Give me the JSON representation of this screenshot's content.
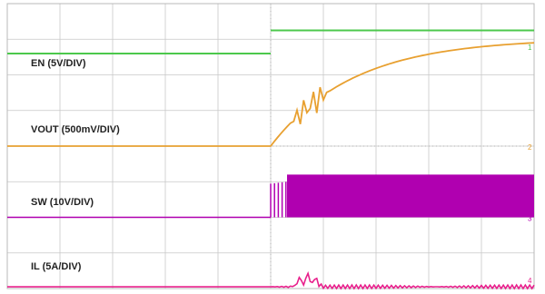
{
  "chart_data": {
    "type": "line",
    "title": "",
    "xlabel": "",
    "ylabel": "",
    "grid": true,
    "grid_divisions": {
      "x": 10,
      "y": 8
    },
    "trigger_x_division": 5,
    "series": [
      {
        "name": "EN (5V/DIV)",
        "color": "#4cc84c",
        "level_divisions_before": 6.6,
        "level_divisions_after": 7.25,
        "step_at_division": 5
      },
      {
        "name": "VOUT (500mV/DIV)",
        "color": "#e8a030",
        "start_level_divisions": 4.0,
        "end_level_divisions": 6.9,
        "start_at_division": 5
      },
      {
        "name": "SW (10V/DIV)",
        "color": "#b000b0",
        "low_level_divisions": 2.0,
        "high_level_divisions": 3.2,
        "start_at_division": 5
      },
      {
        "name": "IL (5A/DIV)",
        "color": "#e8208c",
        "level_divisions": 0.05,
        "start_at_division": 5
      }
    ],
    "right_markers": [
      "1",
      "2",
      "3",
      "4"
    ]
  }
}
